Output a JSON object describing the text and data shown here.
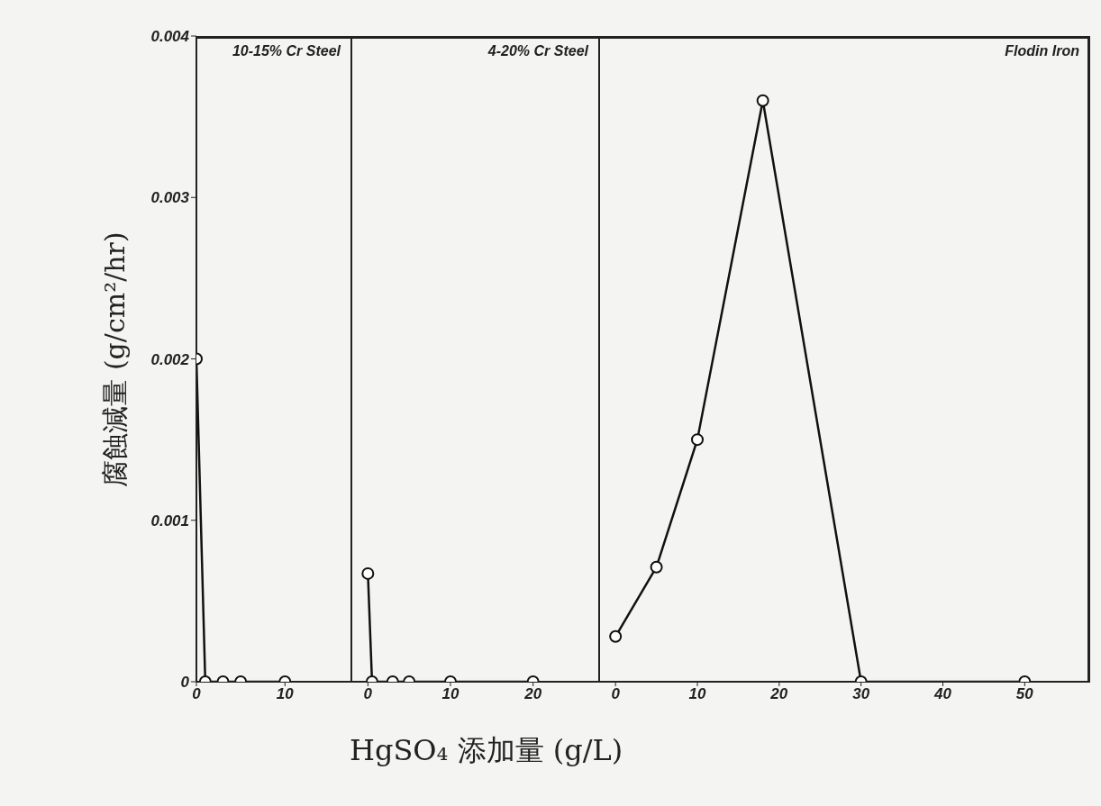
{
  "chart_data": [
    {
      "type": "line",
      "title": "10-15% Cr Steel",
      "ylabel": "腐蝕減量 (g/cm²/hr)",
      "x": [
        0,
        1,
        3,
        5,
        10
      ],
      "series": [
        {
          "color": "#111111",
          "values": [
            0.002,
            0,
            0,
            0,
            0
          ]
        }
      ],
      "xlim": [
        0,
        17.5
      ],
      "xticks": [
        0,
        10
      ],
      "ylim": [
        0,
        0.004
      ],
      "yticks": [
        0,
        0.001,
        0.002,
        0.003,
        0.004
      ],
      "marker": "circle",
      "line_style": "solid"
    },
    {
      "type": "line",
      "title": "4-20% Cr Steel",
      "xlabel": "HgSO₄ 添加量 (g/L)",
      "x": [
        0,
        0.5,
        3,
        5,
        10,
        20
      ],
      "series": [
        {
          "color": "#111111",
          "values": [
            0.00067,
            0,
            0,
            0,
            0,
            0
          ]
        }
      ],
      "xlim": [
        -2,
        28
      ],
      "xticks": [
        0,
        10,
        20
      ],
      "ylim": [
        0,
        0.004
      ],
      "tick_labels": "x",
      "marker": "circle",
      "line_style": "solid"
    },
    {
      "type": "line",
      "title": "Flodin Iron",
      "x": [
        0,
        5,
        10,
        18,
        30,
        50
      ],
      "series": [
        {
          "color": "#111111",
          "values": [
            0.00028,
            0.00071,
            0.0015,
            0.0036,
            0,
            0
          ]
        }
      ],
      "xlim": [
        -2,
        58
      ],
      "xticks": [
        0,
        10,
        20,
        30,
        40,
        50
      ],
      "ylim": [
        0,
        0.004
      ],
      "tick_labels": "x",
      "marker": "circle",
      "line_style": "solid"
    }
  ]
}
